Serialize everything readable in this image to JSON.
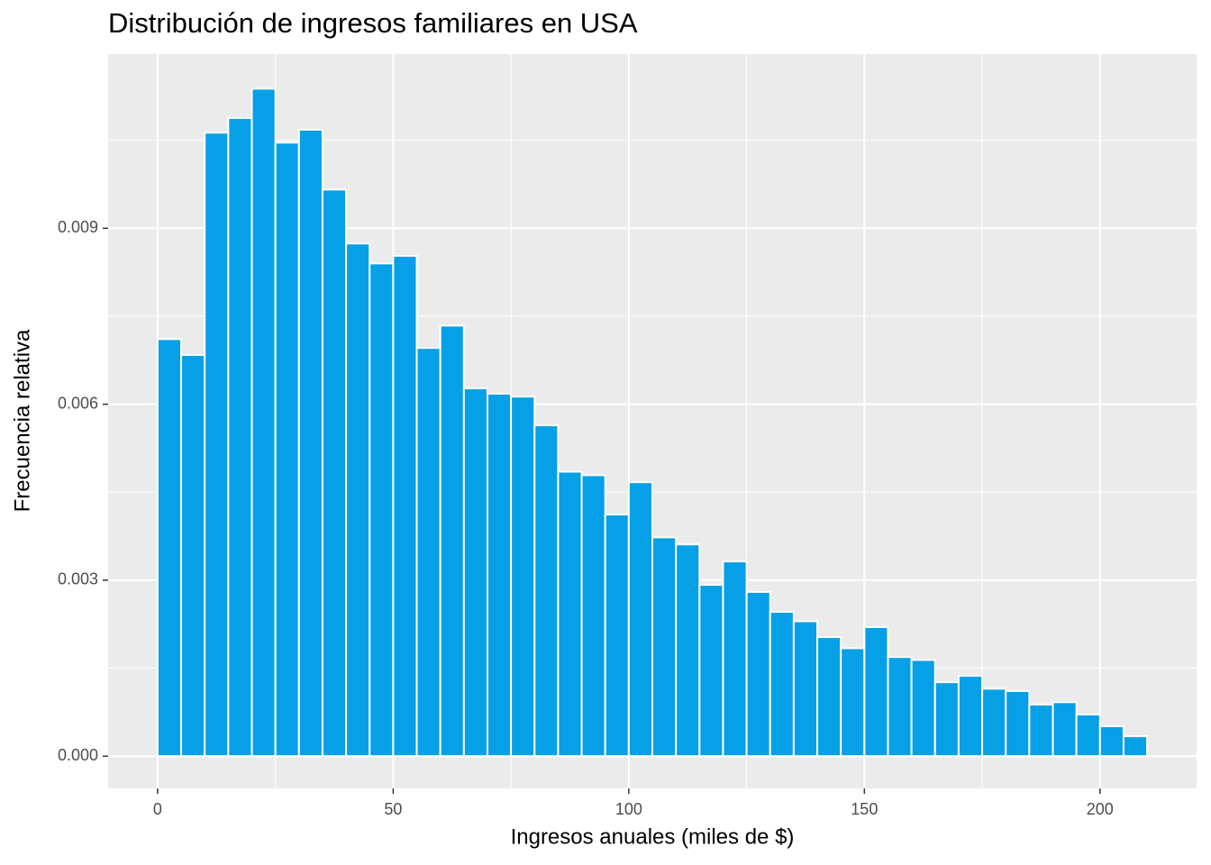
{
  "chart_data": {
    "type": "histogram",
    "title": "Distribución de ingresos familiares en USA",
    "x_label": "Ingresos anuales (miles de $)",
    "y_label": "Frecuencia relativa",
    "bins": [
      0,
      5,
      10,
      15,
      20,
      25,
      30,
      35,
      40,
      45,
      50,
      55,
      60,
      65,
      70,
      75,
      80,
      85,
      90,
      95,
      100,
      105,
      110,
      115,
      120,
      125,
      130,
      135,
      140,
      145,
      150,
      155,
      160,
      165,
      170,
      175,
      180,
      185,
      190,
      195,
      200,
      205,
      210
    ],
    "values": [
      0.00711,
      0.00684,
      0.01063,
      0.01088,
      0.01138,
      0.01046,
      0.01068,
      0.00966,
      0.00874,
      0.0084,
      0.00853,
      0.00696,
      0.00734,
      0.00627,
      0.00618,
      0.00613,
      0.00564,
      0.00485,
      0.00479,
      0.00412,
      0.00467,
      0.00373,
      0.00361,
      0.00292,
      0.00332,
      0.0028,
      0.00246,
      0.0023,
      0.00203,
      0.00184,
      0.0022,
      0.00169,
      0.00164,
      0.00126,
      0.00137,
      0.00115,
      0.00111,
      0.00088,
      0.00092,
      0.00071,
      0.00051,
      0.00034
    ],
    "color": "#06a0e6",
    "xlim": [
      -10.5,
      220.5
    ],
    "ylim": [
      -0.00055,
      0.01197
    ],
    "xticks": [
      0,
      50,
      100,
      150,
      200
    ],
    "yticks": [
      {
        "value": 0,
        "label": "0.000"
      },
      {
        "value": 0.003,
        "label": "0.003"
      },
      {
        "value": 0.006,
        "label": "0.006"
      },
      {
        "value": 0.009,
        "label": "0.009"
      }
    ],
    "grid": true
  }
}
